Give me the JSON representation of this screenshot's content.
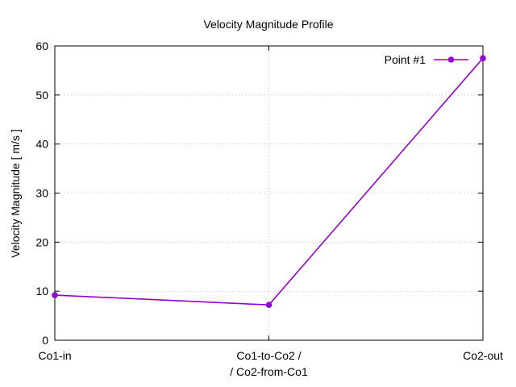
{
  "chart_data": {
    "type": "line",
    "title": "Velocity Magnitude Profile",
    "xlabel": "",
    "ylabel": "Velocity Magnitude [ m/s ]",
    "categories": [
      [
        "Co1-in"
      ],
      [
        "Co1-to-Co2 /",
        "/ Co2-from-Co1"
      ],
      [
        "Co2-out"
      ]
    ],
    "ylim": [
      0,
      60
    ],
    "yticks": [
      0,
      10,
      20,
      30,
      40,
      50,
      60
    ],
    "grid": "dotted",
    "legend_position": "top-right",
    "series": [
      {
        "name": "Point #1",
        "color": "#9400d3",
        "marker": "circle",
        "values": [
          9.2,
          7.2,
          57.5
        ]
      }
    ]
  }
}
